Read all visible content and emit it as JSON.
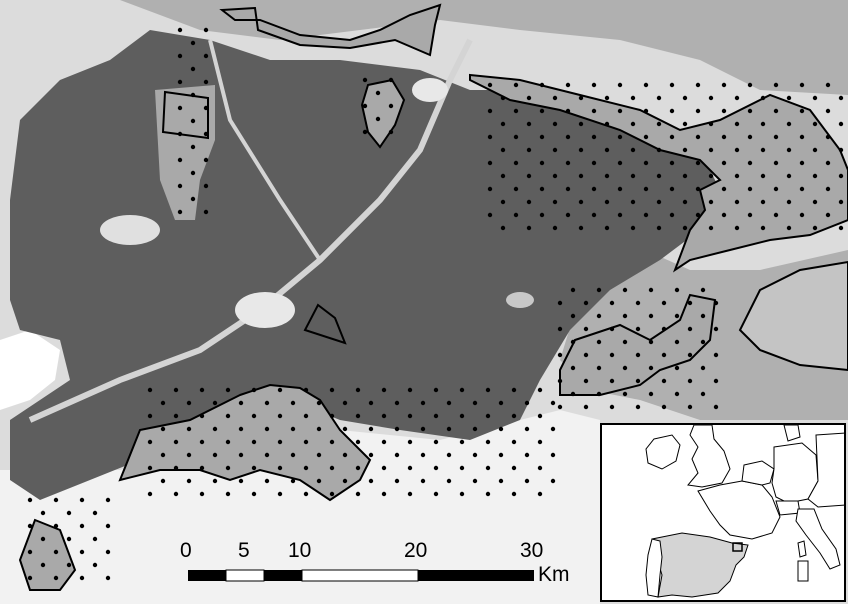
{
  "map": {
    "land_cover_colors": {
      "dark": "#5e5e5e",
      "medium": "#a9a9a9",
      "light": "#d4d4d4",
      "white": "#ffffff",
      "boundary": "#000000",
      "sample_point": "#000000"
    }
  },
  "scale_bar": {
    "labels": [
      "0",
      "5",
      "10",
      "20",
      "30"
    ],
    "unit": "Km"
  },
  "inset_map": {
    "highlight_country": "Spain",
    "highlight_color": "#d4d4d4"
  }
}
